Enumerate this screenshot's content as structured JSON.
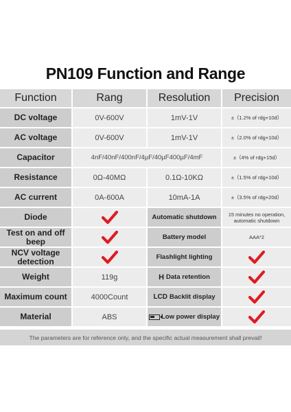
{
  "title": "PN109 Function and Range",
  "headers": [
    "Function",
    "Rang",
    "Resolution",
    "Precision"
  ],
  "rows": [
    {
      "function": "DC voltage",
      "range": "0V-600V",
      "resolution": "1mV-1V",
      "precision": "±（1.2% of rdg+10d）"
    },
    {
      "function": "AC voltage",
      "range": "0V-600V",
      "resolution": "1mV-1V",
      "precision": "±（2.0% of rdg+10d）"
    },
    {
      "function": "Capacitor",
      "range": "4nF/40nF/400nF/4µF/40µF400µF/4mF",
      "resolution": "",
      "precision": "±（4% of rdg+15d）"
    },
    {
      "function": "Resistance",
      "range": "0Ω-40MΩ",
      "resolution": "0.1Ω-10KΩ",
      "precision": "±（1.5% of rdg+10d）"
    },
    {
      "function": "AC current",
      "range": "0A-600A",
      "resolution": "10mA-1A",
      "precision": "±（3.5% of rdg+20d）"
    }
  ],
  "features": [
    {
      "label": "Diode",
      "value_icon": "check-icon",
      "feature": "Automatic shutdown",
      "feature_icon": "",
      "feature_value": "15 minutes no operation, automatic shutdown"
    },
    {
      "label": "Test on and off beep",
      "value_icon": "check-icon",
      "feature": "Battery model",
      "feature_icon": "",
      "feature_value": "AAA*2"
    },
    {
      "label": "NCV voltage detection",
      "value_icon": "check-icon",
      "feature": "Flashlight lighting",
      "feature_icon": "",
      "feature_value": "check-icon"
    },
    {
      "label": "Weight",
      "value": "119g",
      "feature": "Data retention",
      "feature_icon": "H",
      "feature_value": "check-icon"
    },
    {
      "label": "Maximum count",
      "value": "4000Count",
      "feature": "Backlit display",
      "feature_icon": "LCD",
      "feature_value": "check-icon"
    },
    {
      "label": "Material",
      "value": "ABS",
      "feature": "Low power display",
      "feature_icon": "battery-icon",
      "feature_value": "check-icon"
    }
  ],
  "footer": "The parameters are for reference only, and the specific actual measurement shall prevail!",
  "colors": {
    "check": "#e01b22",
    "header_bg": "#d7d7d7",
    "label_bg": "#cdcdcd",
    "value_bg": "#ececec"
  }
}
